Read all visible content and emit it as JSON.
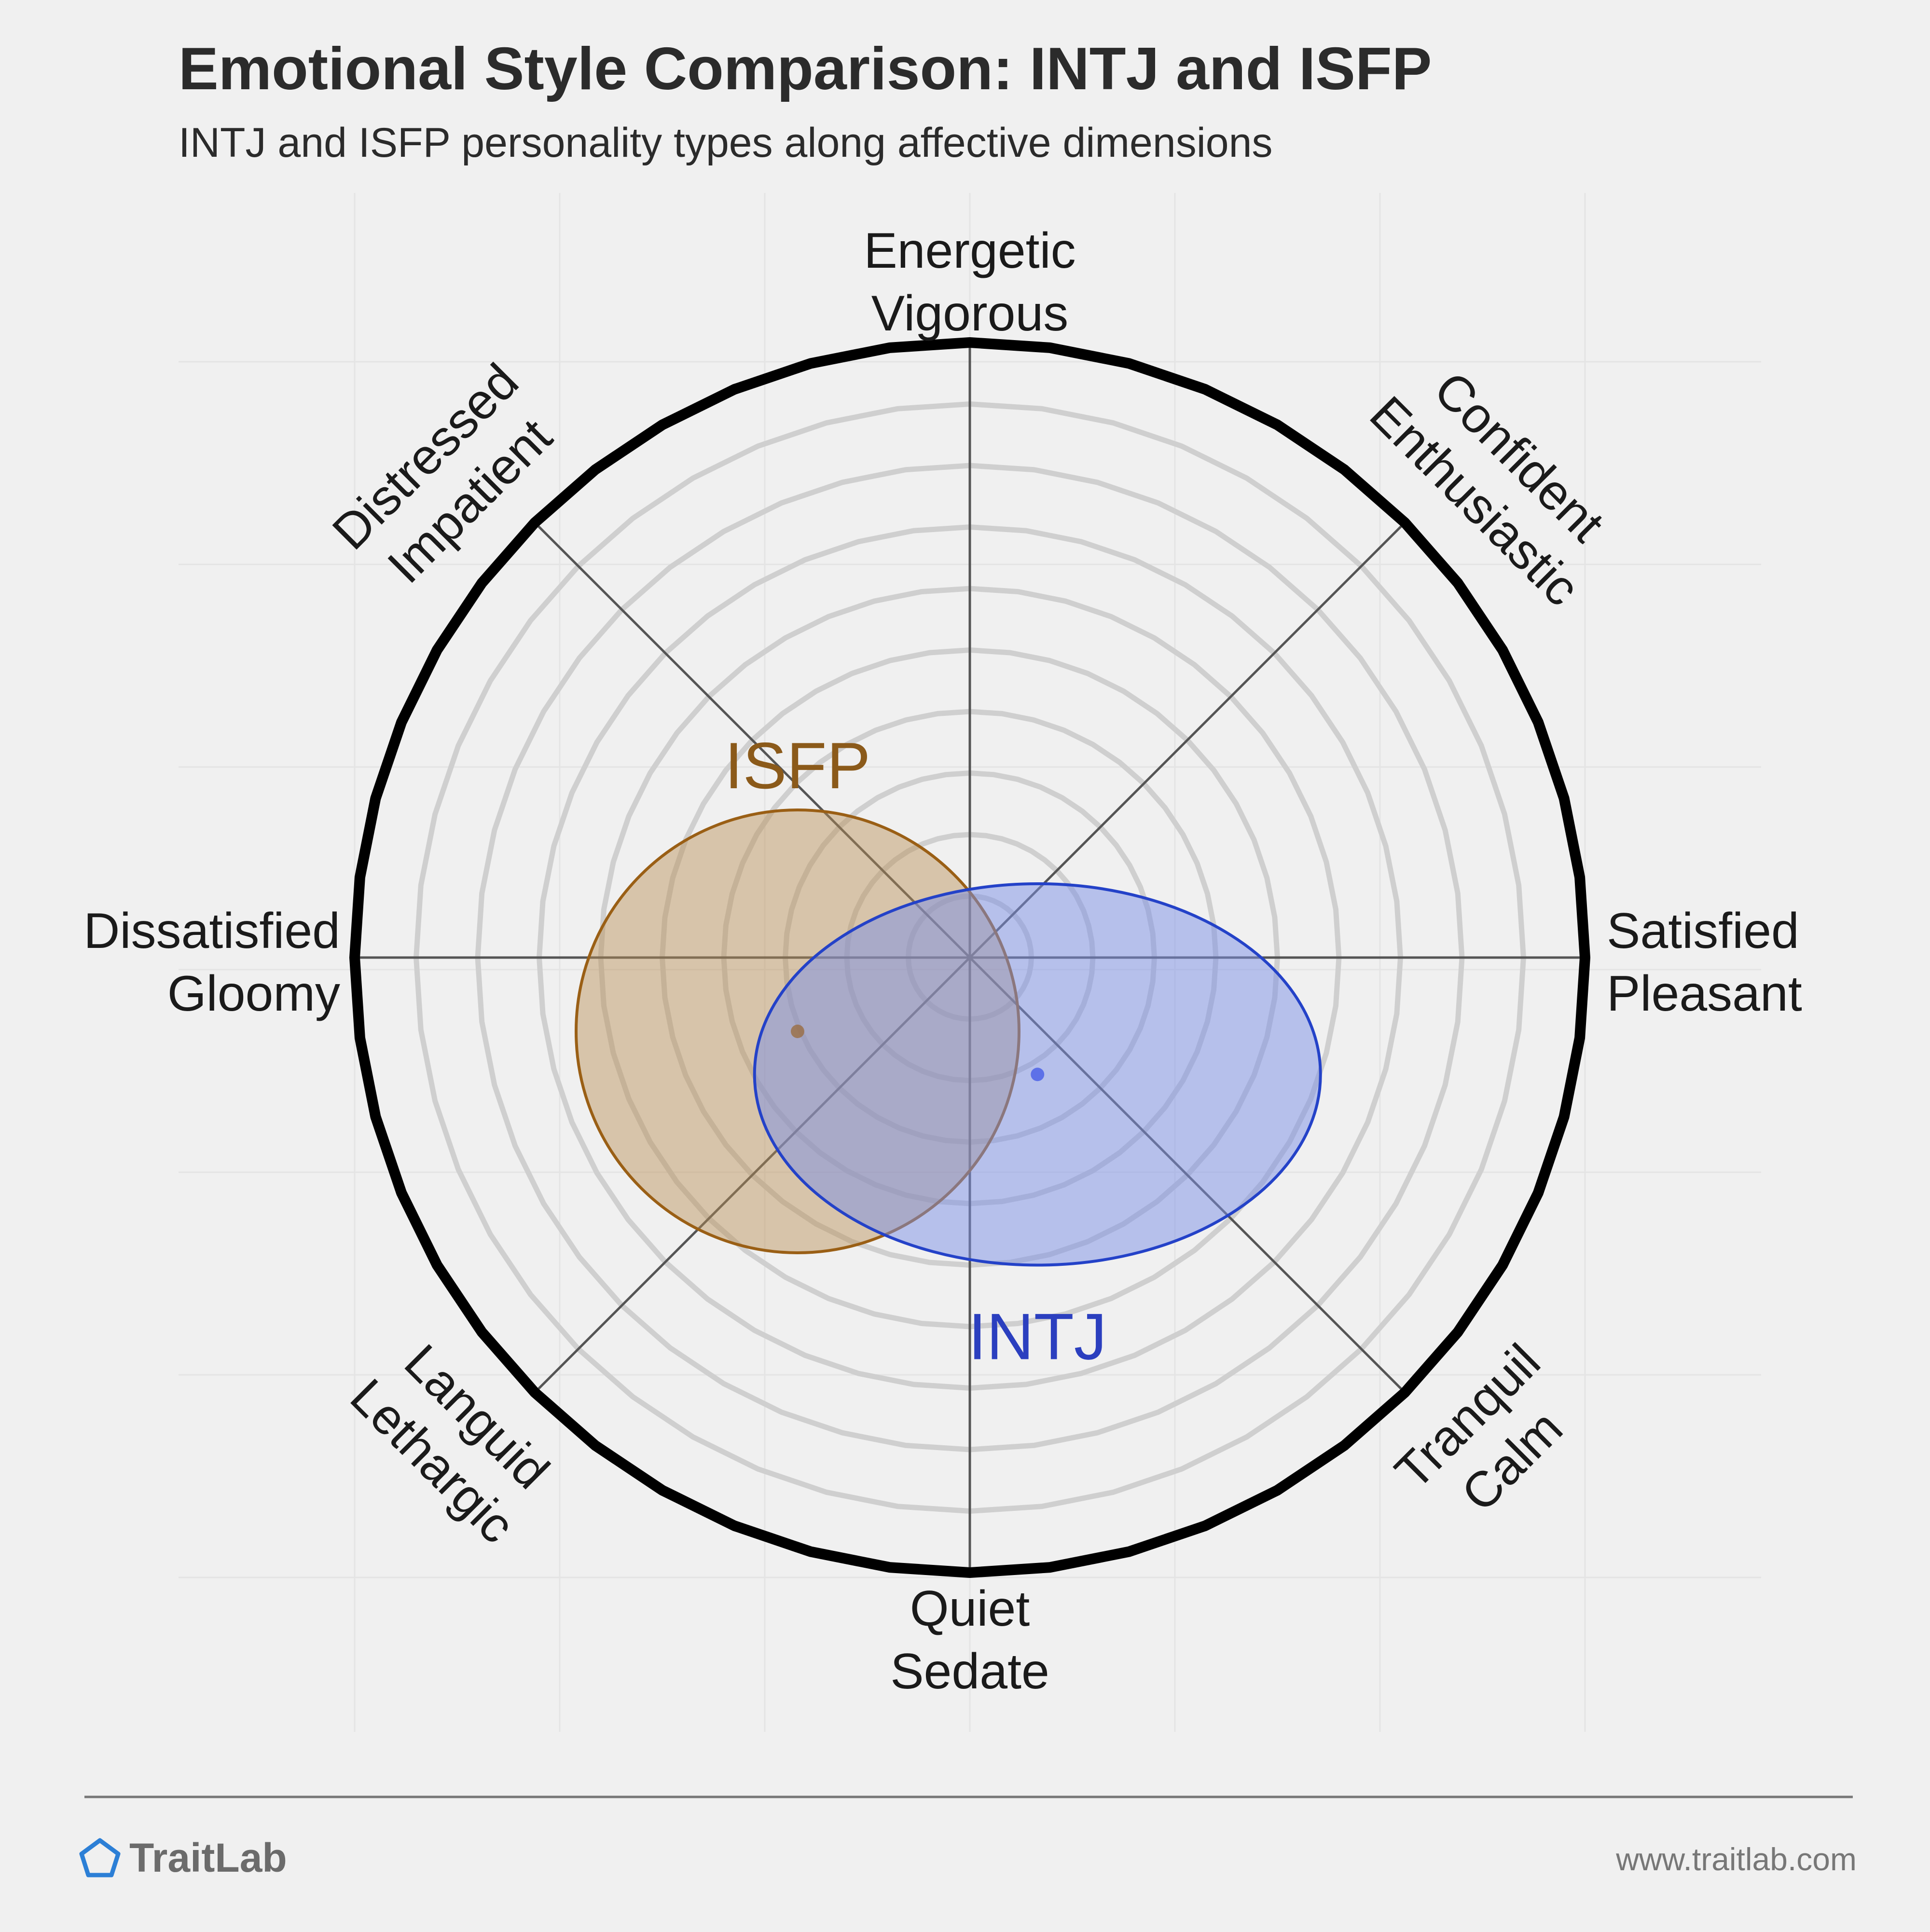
{
  "header": {
    "title": "Emotional Style Comparison: INTJ and ISFP",
    "subtitle": "INTJ and ISFP personality types along affective dimensions"
  },
  "chart_data": {
    "type": "scatter",
    "title": "Emotional Style Comparison: INTJ and ISFP",
    "subtitle": "INTJ and ISFP personality types along affective dimensions",
    "axes": {
      "x_negative": [
        "Dissatisfied",
        "Gloomy"
      ],
      "x_positive": [
        "Satisfied",
        "Pleasant"
      ],
      "y_positive": [
        "Energetic",
        "Vigorous"
      ],
      "y_negative": [
        "Quiet",
        "Sedate"
      ],
      "diag_pp": [
        "Confident",
        "Enthusiastic"
      ],
      "diag_np": [
        "Distressed",
        "Impatient"
      ],
      "diag_nn": [
        "Languid",
        "Lethargic"
      ],
      "diag_pn": [
        "Tranquil",
        "Calm"
      ]
    },
    "xlim": [
      -1,
      1
    ],
    "ylim": [
      -1,
      1
    ],
    "rings": [
      0.1,
      0.2,
      0.3,
      0.4,
      0.5,
      0.6,
      0.7,
      0.8,
      0.9
    ],
    "series": [
      {
        "name": "ISFP",
        "color": "#8b5a1a",
        "center": [
          -0.28,
          -0.12
        ],
        "radius": [
          0.36,
          0.36
        ]
      },
      {
        "name": "INTJ",
        "color": "#2b3fbf",
        "center": [
          0.11,
          -0.19
        ],
        "radius": [
          0.46,
          0.31
        ]
      }
    ]
  },
  "footer": {
    "brand": "TraitLab",
    "url": "www.traitlab.com"
  },
  "colors": {
    "background": "#f0f0f0",
    "ring": "#cfcfcf",
    "outer_ring": "#000000",
    "axis": "#555555",
    "isfp_fill": "#c9a77e",
    "intj_fill": "#8e9be6",
    "brand_icon": "#2c7fd6"
  }
}
